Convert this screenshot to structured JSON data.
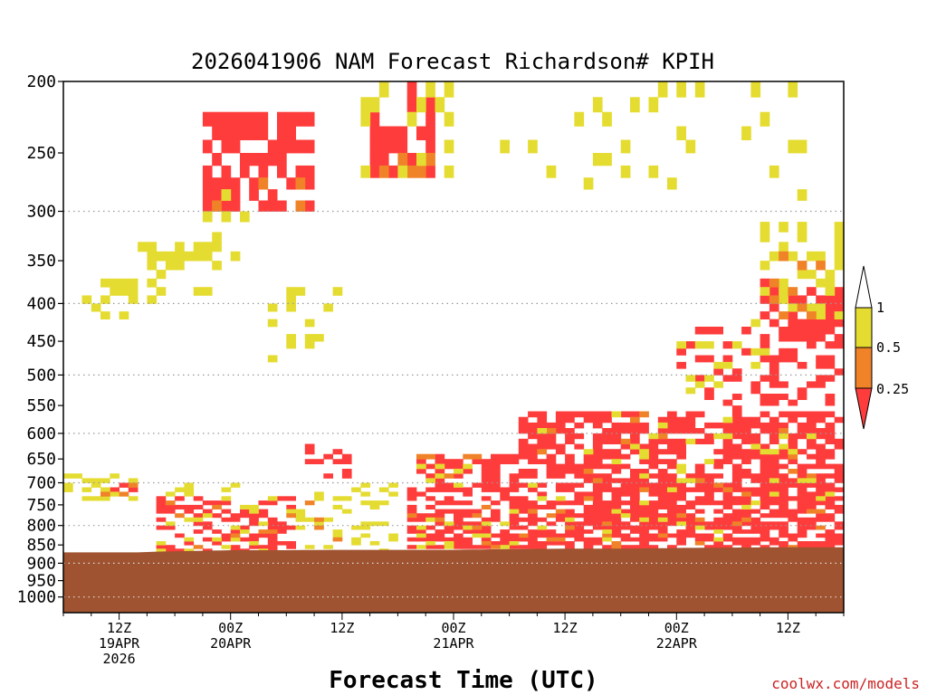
{
  "chart_data": {
    "type": "heatmap",
    "title": "2026041906 NAM Forecast Richardson# KPIH",
    "xlabel": "Forecast Time (UTC)",
    "ylabel": "",
    "watermark": "coolwx.com/models",
    "y_axis": {
      "scale": "log-pressure",
      "range": [
        1050,
        200
      ],
      "ticks": [
        200,
        250,
        300,
        350,
        400,
        450,
        500,
        550,
        600,
        650,
        700,
        750,
        800,
        850,
        900,
        950,
        1000
      ],
      "gridlines": [
        300,
        400,
        500,
        600,
        700,
        800,
        900,
        1000
      ]
    },
    "x_axis": {
      "start": "2026-04-19 06Z",
      "end": "2026-04-22 21Z",
      "ticks": [
        {
          "hour": 6,
          "lines": [
            "12Z",
            "19APR",
            "2026"
          ]
        },
        {
          "hour": 18,
          "lines": [
            "00Z",
            "20APR"
          ]
        },
        {
          "hour": 30,
          "lines": [
            "12Z"
          ]
        },
        {
          "hour": 42,
          "lines": [
            "00Z",
            "21APR"
          ]
        },
        {
          "hour": 54,
          "lines": [
            "12Z"
          ]
        },
        {
          "hour": 66,
          "lines": [
            "00Z",
            "22APR"
          ]
        },
        {
          "hour": 78,
          "lines": [
            "12Z"
          ]
        }
      ]
    },
    "colorbar": {
      "labels": [
        "1",
        "0.5",
        "0.25"
      ],
      "bins": [
        {
          "range": "> 1",
          "color": "#ffffff"
        },
        {
          "range": "0.5 - 1",
          "color": "#e5dc32"
        },
        {
          "range": "0.25 - 0.5",
          "color": "#f08228"
        },
        {
          "range": "< 0.25",
          "color": "#ff3c3c"
        }
      ]
    },
    "colors": {
      "ground": "#9f5330",
      "yellow": "#e5dc32",
      "orange": "#f08228",
      "red": "#ff3c3c"
    },
    "surface_pressure_by_hour": [
      [
        0,
        870
      ],
      [
        6,
        870
      ],
      [
        8,
        870
      ],
      [
        10,
        868
      ],
      [
        14,
        866
      ],
      [
        18,
        864
      ],
      [
        24,
        864
      ],
      [
        30,
        863
      ],
      [
        36,
        863
      ],
      [
        42,
        863
      ],
      [
        48,
        861
      ],
      [
        54,
        860
      ],
      [
        60,
        860
      ],
      [
        66,
        858
      ],
      [
        72,
        857
      ],
      [
        78,
        856
      ],
      [
        84,
        856
      ]
    ],
    "regions": [
      {
        "cat": "red",
        "hours": [
          49,
          84
        ],
        "p": [
          560,
          860
        ],
        "density": 0.62
      },
      {
        "cat": "orange",
        "hours": [
          49,
          84
        ],
        "p": [
          560,
          860
        ],
        "density": 0.1
      },
      {
        "cat": "yellow",
        "hours": [
          49,
          84
        ],
        "p": [
          560,
          860
        ],
        "density": 0.14
      },
      {
        "cat": "red",
        "hours": [
          37,
          49
        ],
        "p": [
          640,
          860
        ],
        "density": 0.45
      },
      {
        "cat": "yellow",
        "hours": [
          37,
          49
        ],
        "p": [
          640,
          860
        ],
        "density": 0.18
      },
      {
        "cat": "orange",
        "hours": [
          37,
          49
        ],
        "p": [
          640,
          860
        ],
        "density": 0.08
      },
      {
        "cat": "red",
        "hours": [
          10,
          25
        ],
        "p": [
          730,
          865
        ],
        "density": 0.35
      },
      {
        "cat": "yellow",
        "hours": [
          10,
          36
        ],
        "p": [
          700,
          865
        ],
        "density": 0.18
      },
      {
        "cat": "orange",
        "hours": [
          10,
          30
        ],
        "p": [
          740,
          865
        ],
        "density": 0.08
      },
      {
        "cat": "red",
        "hours": [
          4,
          8
        ],
        "p": [
          690,
          730
        ],
        "density": 0.5
      },
      {
        "cat": "yellow",
        "hours": [
          0,
          8
        ],
        "p": [
          680,
          740
        ],
        "density": 0.5
      },
      {
        "cat": "orange",
        "hours": [
          4,
          8
        ],
        "p": [
          690,
          730
        ],
        "density": 0.3
      },
      {
        "cat": "red",
        "hours": [
          26,
          31
        ],
        "p": [
          615,
          690
        ],
        "density": 0.35
      },
      {
        "cat": "red",
        "hours": [
          15,
          27
        ],
        "p": [
          215,
          300
        ],
        "density": 0.6
      },
      {
        "cat": "orange",
        "hours": [
          16,
          27
        ],
        "p": [
          250,
          310
        ],
        "density": 0.12
      },
      {
        "cat": "yellow",
        "hours": [
          15,
          20
        ],
        "p": [
          280,
          350
        ],
        "density": 0.35
      },
      {
        "cat": "red",
        "hours": [
          33,
          40
        ],
        "p": [
          200,
          270
        ],
        "density": 0.4
      },
      {
        "cat": "orange",
        "hours": [
          33,
          40
        ],
        "p": [
          240,
          270
        ],
        "density": 0.35
      },
      {
        "cat": "yellow",
        "hours": [
          32,
          42
        ],
        "p": [
          200,
          270
        ],
        "density": 0.35
      },
      {
        "cat": "yellow",
        "hours": [
          8,
          17
        ],
        "p": [
          330,
          390
        ],
        "density": 0.5
      },
      {
        "cat": "yellow",
        "hours": [
          2,
          10
        ],
        "p": [
          370,
          420
        ],
        "density": 0.25
      },
      {
        "cat": "yellow",
        "hours": [
          22,
          30
        ],
        "p": [
          380,
          480
        ],
        "density": 0.18
      },
      {
        "cat": "yellow",
        "hours": [
          47,
          84
        ],
        "p": [
          200,
          290
        ],
        "density": 0.07
      },
      {
        "cat": "red",
        "hours": [
          75,
          84
        ],
        "p": [
          370,
          560
        ],
        "density": 0.45
      },
      {
        "cat": "yellow",
        "hours": [
          75,
          84
        ],
        "p": [
          310,
          420
        ],
        "density": 0.25
      },
      {
        "cat": "orange",
        "hours": [
          76,
          84
        ],
        "p": [
          330,
          450
        ],
        "density": 0.15
      },
      {
        "cat": "red",
        "hours": [
          66,
          76
        ],
        "p": [
          430,
          560
        ],
        "density": 0.18
      },
      {
        "cat": "yellow",
        "hours": [
          66,
          76
        ],
        "p": [
          420,
          540
        ],
        "density": 0.15
      }
    ]
  }
}
